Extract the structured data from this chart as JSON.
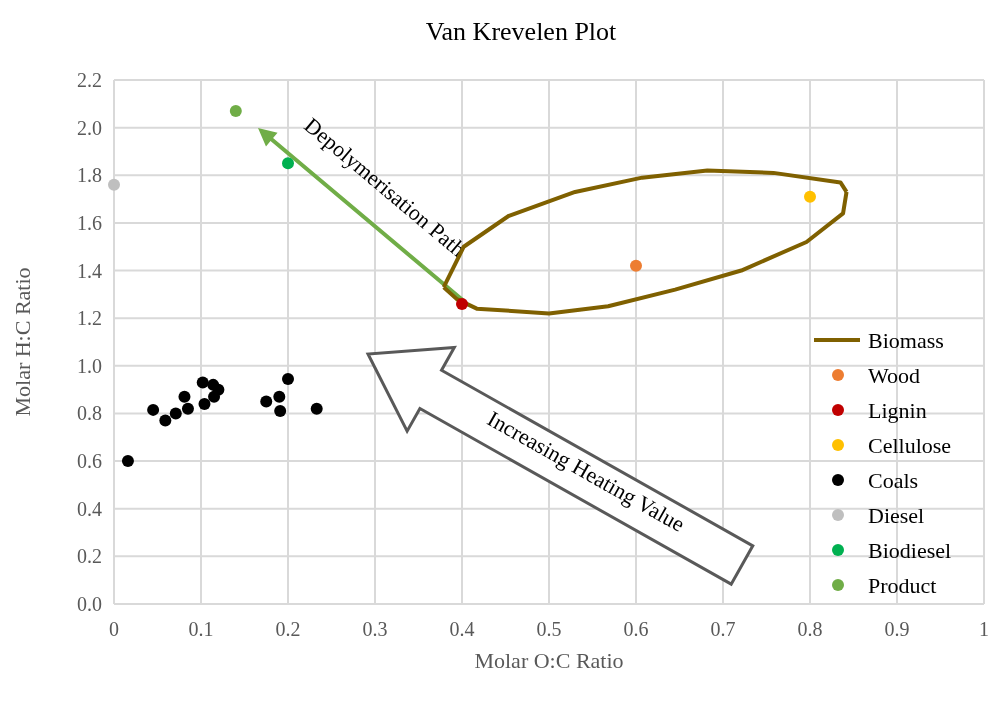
{
  "chart_data": {
    "type": "scatter",
    "title": "Van Krevelen Plot",
    "xlabel": "Molar O:C Ratio",
    "ylabel": "Molar H:C Ratio",
    "xlim": [
      0,
      1
    ],
    "xticks": [
      0,
      0.1,
      0.2,
      0.3,
      0.4,
      0.5,
      0.6,
      0.7,
      0.8,
      0.9,
      1
    ],
    "ylim": [
      0,
      2.2
    ],
    "yticks": [
      {
        "value": 0,
        "label": "0.0"
      },
      {
        "value": 0.2,
        "label": "0.2"
      },
      {
        "value": 0.4,
        "label": "0.4"
      },
      {
        "value": 0.6,
        "label": "0.6"
      },
      {
        "value": 0.8,
        "label": "0.8"
      },
      {
        "value": 1,
        "label": "1.0"
      },
      {
        "value": 1.2,
        "label": "1.2"
      },
      {
        "value": 1.4,
        "label": "1.4"
      },
      {
        "value": 1.6,
        "label": "1.6"
      },
      {
        "value": 1.8,
        "label": "1.8"
      },
      {
        "value": 2,
        "label": "2.0"
      },
      {
        "value": 2.2,
        "label": "2.2"
      }
    ],
    "grid": true,
    "legend": "bottom right",
    "marker": "circle",
    "annotations": [
      "Depolymerisation Path",
      "Increasing Heating Value"
    ],
    "series": [
      {
        "name": "Biomass",
        "type": "line",
        "marker": "none",
        "color": "#7f6000",
        "x": [
          0.379,
          0.402,
          0.454,
          0.53,
          0.607,
          0.682,
          0.758,
          0.835,
          0.842
        ],
        "values": [
          1.33,
          1.5,
          1.63,
          1.73,
          1.79,
          1.82,
          1.81,
          1.77,
          1.73
        ]
      },
      {
        "type": "line",
        "marker": "none",
        "color": "#7f6000",
        "x": [
          0.379,
          0.394,
          0.417,
          0.5,
          0.568,
          0.645,
          0.721,
          0.796,
          0.838,
          0.842
        ],
        "values": [
          1.33,
          1.28,
          1.24,
          1.22,
          1.25,
          1.32,
          1.4,
          1.52,
          1.64,
          1.73
        ]
      },
      {
        "name": "Wood",
        "color": "#ed7d31",
        "x": [
          0.6
        ],
        "values": [
          1.42
        ]
      },
      {
        "name": "Lignin",
        "color": "#c00000",
        "x": [
          0.4
        ],
        "values": [
          1.26
        ]
      },
      {
        "name": "Cellulose",
        "color": "#ffc000",
        "x": [
          0.8
        ],
        "values": [
          1.71
        ]
      },
      {
        "name": "Coals",
        "color": "#000000",
        "x": [
          0.016,
          0.045,
          0.059,
          0.071,
          0.081,
          0.085,
          0.102,
          0.104,
          0.114,
          0.115,
          0.12,
          0.175,
          0.19,
          0.191,
          0.2,
          0.233
        ],
        "values": [
          0.6,
          0.815,
          0.77,
          0.8,
          0.87,
          0.82,
          0.93,
          0.84,
          0.92,
          0.87,
          0.9,
          0.85,
          0.87,
          0.81,
          0.945,
          0.82
        ]
      },
      {
        "name": "Diesel",
        "color": "#bfbfbf",
        "x": [
          0
        ],
        "values": [
          1.76
        ]
      },
      {
        "name": "Biodiesel",
        "color": "#00b050",
        "x": [
          0.2
        ],
        "values": [
          1.85
        ]
      },
      {
        "name": "Product",
        "color": "#70ad47",
        "x": [
          0.14
        ],
        "values": [
          2.07
        ]
      }
    ]
  }
}
